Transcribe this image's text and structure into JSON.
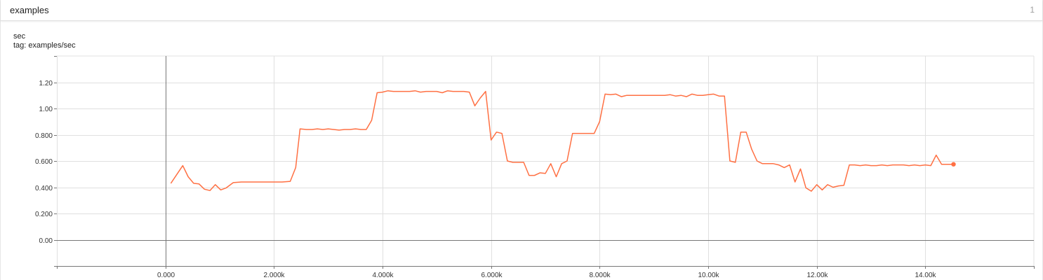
{
  "header": {
    "title": "examples",
    "count": "1"
  },
  "chart": {
    "title": "sec",
    "tag": "tag: examples/sec"
  },
  "colors": {
    "series": "#ff7043",
    "grid": "#e0e0e0",
    "axis": "#777777",
    "tick_text": "#333333"
  },
  "chart_data": {
    "type": "line",
    "title": "",
    "xlabel": "",
    "ylabel": "",
    "xlim": [
      -2000,
      16000
    ],
    "ylim": [
      -0.2,
      1.4
    ],
    "grid": true,
    "x_ticks": [
      0,
      2000,
      4000,
      6000,
      8000,
      10000,
      12000,
      14000
    ],
    "x_tick_labels": [
      "0.000",
      "2.000k",
      "4.000k",
      "6.000k",
      "8.000k",
      "10.00k",
      "12.00k",
      "14.00k"
    ],
    "y_ticks": [
      0,
      0.2,
      0.4,
      0.6,
      0.8,
      1.0,
      1.2
    ],
    "y_tick_labels": [
      "0.00",
      "0.200",
      "0.400",
      "0.600",
      "0.800",
      "1.00",
      "1.20"
    ],
    "last_point_marker": true,
    "series": [
      {
        "x": [
          100,
          320,
          420,
          520,
          620,
          720,
          820,
          920,
          1020,
          1120,
          1250,
          1400,
          1600,
          1800,
          2000,
          2150,
          2300,
          2400,
          2480,
          2600,
          2700,
          2800,
          2900,
          3000,
          3100,
          3200,
          3300,
          3400,
          3500,
          3600,
          3700,
          3800,
          3900,
          4000,
          4100,
          4200,
          4300,
          4400,
          4500,
          4600,
          4700,
          4800,
          4900,
          5000,
          5100,
          5200,
          5300,
          5400,
          5500,
          5600,
          5700,
          5800,
          5900,
          6000,
          6100,
          6200,
          6300,
          6400,
          6500,
          6600,
          6700,
          6800,
          6900,
          7000,
          7100,
          7200,
          7300,
          7400,
          7500,
          7600,
          7700,
          7800,
          7900,
          8000,
          8100,
          8200,
          8300,
          8400,
          8500,
          8600,
          8700,
          8800,
          8900,
          9000,
          9100,
          9200,
          9300,
          9400,
          9500,
          9600,
          9700,
          9800,
          9900,
          10000,
          10100,
          10200,
          10300,
          10400,
          10500,
          10600,
          10700,
          10800,
          10900,
          11000,
          11100,
          11200,
          11300,
          11400,
          11500,
          11600,
          11700,
          11800,
          11900,
          12000,
          12100,
          12200,
          12300,
          12400,
          12500,
          12600,
          12700,
          12800,
          12900,
          13000,
          13100,
          13200,
          13300,
          13400,
          13500,
          13600,
          13700,
          13800,
          13900,
          14000,
          14100,
          14200,
          14300,
          14400,
          14520
        ],
        "y": [
          0.43,
          0.565,
          0.48,
          0.43,
          0.425,
          0.385,
          0.375,
          0.42,
          0.38,
          0.395,
          0.435,
          0.44,
          0.44,
          0.44,
          0.44,
          0.44,
          0.445,
          0.55,
          0.845,
          0.84,
          0.84,
          0.845,
          0.84,
          0.845,
          0.84,
          0.835,
          0.84,
          0.84,
          0.845,
          0.84,
          0.84,
          0.91,
          1.12,
          1.125,
          1.135,
          1.13,
          1.13,
          1.13,
          1.13,
          1.135,
          1.125,
          1.13,
          1.13,
          1.13,
          1.12,
          1.135,
          1.13,
          1.13,
          1.13,
          1.125,
          1.02,
          1.08,
          1.13,
          0.76,
          0.82,
          0.81,
          0.6,
          0.59,
          0.59,
          0.59,
          0.49,
          0.49,
          0.51,
          0.505,
          0.58,
          0.48,
          0.58,
          0.6,
          0.81,
          0.81,
          0.81,
          0.81,
          0.81,
          0.9,
          1.11,
          1.105,
          1.11,
          1.09,
          1.1,
          1.1,
          1.1,
          1.1,
          1.1,
          1.1,
          1.1,
          1.1,
          1.105,
          1.095,
          1.1,
          1.09,
          1.11,
          1.1,
          1.1,
          1.105,
          1.11,
          1.095,
          1.095,
          0.6,
          0.59,
          0.82,
          0.82,
          0.69,
          0.6,
          0.58,
          0.58,
          0.58,
          0.57,
          0.55,
          0.57,
          0.44,
          0.54,
          0.395,
          0.37,
          0.42,
          0.38,
          0.42,
          0.4,
          0.41,
          0.415,
          0.57,
          0.57,
          0.565,
          0.57,
          0.565,
          0.565,
          0.57,
          0.565,
          0.57,
          0.57,
          0.57,
          0.565,
          0.57,
          0.565,
          0.57,
          0.565,
          0.645,
          0.575,
          0.575,
          0.575
        ]
      }
    ]
  }
}
